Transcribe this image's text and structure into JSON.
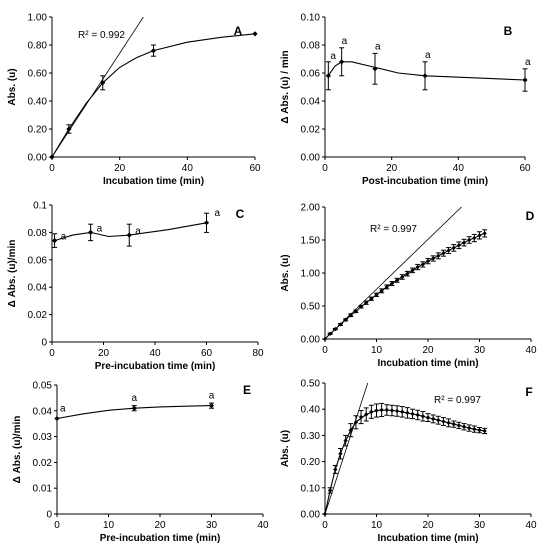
{
  "chart_data": [
    {
      "panel": "A",
      "type": "line",
      "xlabel": "Incubation time (min)",
      "ylabel": "Abs. (u)",
      "xlim": [
        0,
        60
      ],
      "ylim": [
        0,
        1.0
      ],
      "xticks": [
        0,
        20,
        40,
        60
      ],
      "yticks": [
        0.0,
        0.2,
        0.4,
        0.6,
        0.8,
        1.0
      ],
      "ydecimals": 2,
      "annotation": "R² = 0.992",
      "series": [
        {
          "x": [
            0,
            5,
            15,
            30,
            60
          ],
          "y": [
            0,
            0.2,
            0.53,
            0.76,
            0.88
          ],
          "err": [
            0,
            0.03,
            0.05,
            0.04,
            0
          ]
        }
      ],
      "curve": [
        [
          0,
          0
        ],
        [
          5,
          0.2
        ],
        [
          10,
          0.38
        ],
        [
          15,
          0.53
        ],
        [
          20,
          0.64
        ],
        [
          25,
          0.71
        ],
        [
          30,
          0.76
        ],
        [
          40,
          0.82
        ],
        [
          50,
          0.855
        ],
        [
          60,
          0.88
        ]
      ],
      "tangent": [
        [
          0,
          0
        ],
        [
          27,
          1.0
        ]
      ]
    },
    {
      "panel": "B",
      "type": "line",
      "xlabel": "Post-incubation time (min)",
      "ylabel": "Δ Abs. (u) / min",
      "xlim": [
        0,
        60
      ],
      "ylim": [
        0,
        0.1
      ],
      "xticks": [
        0,
        20,
        40,
        60
      ],
      "yticks": [
        0.0,
        0.02,
        0.04,
        0.06,
        0.08,
        0.1
      ],
      "ydecimals": 2,
      "series": [
        {
          "x": [
            1,
            5,
            15,
            30,
            60
          ],
          "y": [
            0.058,
            0.068,
            0.063,
            0.058,
            0.055
          ],
          "err": [
            0.01,
            0.01,
            0.011,
            0.01,
            0.008
          ]
        }
      ],
      "curve": [
        [
          1,
          0.058
        ],
        [
          3,
          0.065
        ],
        [
          5,
          0.068
        ],
        [
          8,
          0.068
        ],
        [
          15,
          0.064
        ],
        [
          22,
          0.06
        ],
        [
          30,
          0.058
        ],
        [
          40,
          0.057
        ],
        [
          50,
          0.056
        ],
        [
          60,
          0.055
        ]
      ],
      "sig_labels": [
        "a",
        "a",
        "a",
        "a",
        "a"
      ]
    },
    {
      "panel": "C",
      "type": "line",
      "xlabel": "Pre-incubation time (min)",
      "ylabel": "Δ Abs. (u)/min",
      "xlim": [
        0,
        80
      ],
      "ylim": [
        0,
        0.1
      ],
      "xticks": [
        0,
        20,
        40,
        60,
        80
      ],
      "yticks": [
        0,
        0.02,
        0.04,
        0.06,
        0.08,
        0.1
      ],
      "ydecimals": -1,
      "series": [
        {
          "x": [
            1,
            15,
            30,
            60
          ],
          "y": [
            0.074,
            0.08,
            0.078,
            0.087
          ],
          "err": [
            0.005,
            0.006,
            0.008,
            0.007
          ]
        }
      ],
      "curve": [
        [
          1,
          0.074
        ],
        [
          8,
          0.078
        ],
        [
          15,
          0.08
        ],
        [
          22,
          0.077
        ],
        [
          30,
          0.078
        ],
        [
          45,
          0.082
        ],
        [
          60,
          0.087
        ]
      ],
      "sig_labels": [
        "a",
        "a",
        "a",
        "a"
      ]
    },
    {
      "panel": "D",
      "type": "scatter",
      "xlabel": "Incubation time (min)",
      "ylabel": "Abs. (u)",
      "xlim": [
        0,
        40
      ],
      "ylim": [
        0,
        2.0
      ],
      "xticks": [
        0,
        10,
        20,
        30,
        40
      ],
      "yticks": [
        0.0,
        0.5,
        1.0,
        1.5,
        2.0
      ],
      "ydecimals": 2,
      "annotation": "R² = 0.997",
      "series": [
        {
          "x": [
            0,
            1,
            2,
            3,
            4,
            5,
            6,
            7,
            8,
            9,
            10,
            11,
            12,
            13,
            14,
            15,
            16,
            17,
            18,
            19,
            20,
            21,
            22,
            23,
            24,
            25,
            26,
            27,
            28,
            29,
            30,
            31
          ],
          "y": [
            0,
            0.08,
            0.15,
            0.22,
            0.29,
            0.36,
            0.42,
            0.49,
            0.55,
            0.61,
            0.67,
            0.73,
            0.79,
            0.84,
            0.89,
            0.94,
            0.99,
            1.04,
            1.09,
            1.13,
            1.18,
            1.22,
            1.26,
            1.3,
            1.34,
            1.38,
            1.42,
            1.46,
            1.5,
            1.53,
            1.57,
            1.6
          ],
          "err": [
            0,
            0.01,
            0.01,
            0.015,
            0.015,
            0.02,
            0.02,
            0.02,
            0.025,
            0.025,
            0.025,
            0.03,
            0.03,
            0.03,
            0.03,
            0.035,
            0.035,
            0.035,
            0.04,
            0.04,
            0.04,
            0.04,
            0.045,
            0.045,
            0.045,
            0.05,
            0.05,
            0.05,
            0.05,
            0.055,
            0.055,
            0.055
          ]
        }
      ],
      "tangent": [
        [
          0,
          0
        ],
        [
          26.5,
          2.0
        ]
      ]
    },
    {
      "panel": "E",
      "type": "line",
      "xlabel": "Pre-incubation time (min)",
      "ylabel": "Δ Abs. (u)/min",
      "xlim": [
        0,
        40
      ],
      "ylim": [
        0,
        0.05
      ],
      "xticks": [
        0,
        10,
        20,
        30,
        40
      ],
      "yticks": [
        0,
        0.01,
        0.02,
        0.03,
        0.04,
        0.05
      ],
      "ydecimals": -1,
      "series": [
        {
          "x": [
            0,
            15,
            30
          ],
          "y": [
            0.037,
            0.041,
            0.042
          ],
          "err": [
            0,
            0.001,
            0.001
          ]
        }
      ],
      "curve": [
        [
          0,
          0.037
        ],
        [
          5,
          0.0388
        ],
        [
          10,
          0.0402
        ],
        [
          15,
          0.041
        ],
        [
          20,
          0.0415
        ],
        [
          25,
          0.0418
        ],
        [
          30,
          0.042
        ]
      ],
      "sig_labels": [
        "a",
        "a",
        "a"
      ]
    },
    {
      "panel": "F",
      "type": "scatter",
      "xlabel": "Incubation time (min)",
      "ylabel": "Abs. (u)",
      "xlim": [
        0,
        40
      ],
      "ylim": [
        0,
        0.5
      ],
      "xticks": [
        0,
        10,
        20,
        30,
        40
      ],
      "yticks": [
        0.0,
        0.1,
        0.2,
        0.3,
        0.4,
        0.5
      ],
      "ydecimals": 2,
      "annotation": "R² = 0.997",
      "series": [
        {
          "x": [
            0,
            1,
            2,
            3,
            4,
            5,
            6,
            7,
            8,
            9,
            10,
            11,
            12,
            13,
            14,
            15,
            16,
            17,
            18,
            19,
            20,
            21,
            22,
            23,
            24,
            25,
            26,
            27,
            28,
            29,
            30,
            31
          ],
          "y": [
            0,
            0.09,
            0.17,
            0.23,
            0.28,
            0.32,
            0.35,
            0.37,
            0.38,
            0.39,
            0.395,
            0.397,
            0.397,
            0.395,
            0.393,
            0.39,
            0.386,
            0.382,
            0.378,
            0.373,
            0.368,
            0.363,
            0.358,
            0.353,
            0.348,
            0.343,
            0.338,
            0.333,
            0.328,
            0.324,
            0.32,
            0.317
          ],
          "err": [
            0,
            0.01,
            0.015,
            0.02,
            0.02,
            0.025,
            0.025,
            0.025,
            0.025,
            0.025,
            0.025,
            0.025,
            0.02,
            0.02,
            0.02,
            0.02,
            0.02,
            0.018,
            0.018,
            0.018,
            0.015,
            0.015,
            0.015,
            0.015,
            0.015,
            0.012,
            0.012,
            0.012,
            0.012,
            0.012,
            0.01,
            0.01
          ]
        }
      ],
      "curve": [
        [
          0,
          0
        ],
        [
          1,
          0.09
        ],
        [
          2,
          0.17
        ],
        [
          3,
          0.23
        ],
        [
          4,
          0.28
        ],
        [
          5,
          0.32
        ],
        [
          6,
          0.35
        ],
        [
          8,
          0.38
        ],
        [
          10,
          0.395
        ],
        [
          12,
          0.397
        ],
        [
          14,
          0.393
        ],
        [
          16,
          0.386
        ],
        [
          18,
          0.378
        ],
        [
          20,
          0.368
        ],
        [
          22,
          0.358
        ],
        [
          24,
          0.348
        ],
        [
          26,
          0.338
        ],
        [
          28,
          0.328
        ],
        [
          30,
          0.32
        ],
        [
          31,
          0.317
        ]
      ],
      "tangent": [
        [
          0,
          0
        ],
        [
          8.3,
          0.5
        ]
      ]
    }
  ]
}
